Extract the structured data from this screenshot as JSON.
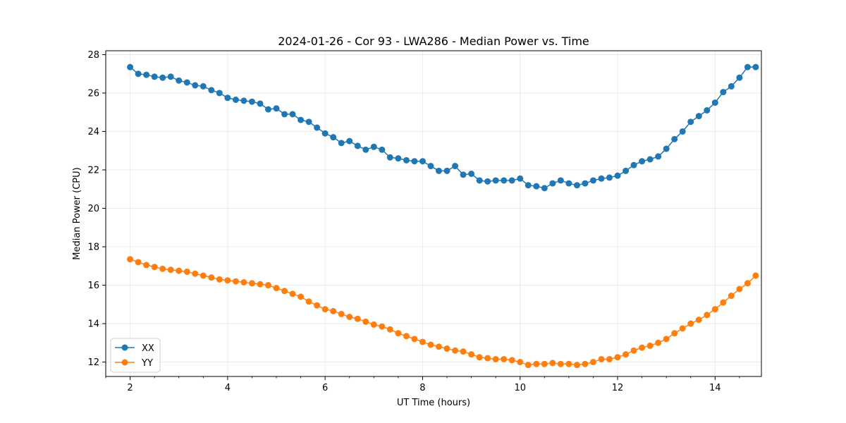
{
  "chart_data": {
    "type": "line",
    "title": "2024-01-26 - Cor 93 - LWA286 - Median Power vs. Time",
    "xlabel": "UT Time (hours)",
    "ylabel": "Median Power (CPU)",
    "xlim": [
      1.5,
      14.95
    ],
    "ylim": [
      11.25,
      28.2
    ],
    "xticks": [
      2,
      4,
      6,
      8,
      10,
      12,
      14
    ],
    "yticks": [
      12,
      14,
      16,
      18,
      20,
      22,
      24,
      26,
      28
    ],
    "grid": true,
    "legend_position": "lower-left",
    "x": [
      2.0,
      2.167,
      2.333,
      2.5,
      2.667,
      2.833,
      3.0,
      3.167,
      3.333,
      3.5,
      3.667,
      3.833,
      4.0,
      4.167,
      4.333,
      4.5,
      4.667,
      4.833,
      5.0,
      5.167,
      5.333,
      5.5,
      5.667,
      5.833,
      6.0,
      6.167,
      6.333,
      6.5,
      6.667,
      6.833,
      7.0,
      7.167,
      7.333,
      7.5,
      7.667,
      7.833,
      8.0,
      8.167,
      8.333,
      8.5,
      8.667,
      8.833,
      9.0,
      9.167,
      9.333,
      9.5,
      9.667,
      9.833,
      10.0,
      10.167,
      10.333,
      10.5,
      10.667,
      10.833,
      11.0,
      11.167,
      11.333,
      11.5,
      11.667,
      11.833,
      12.0,
      12.167,
      12.333,
      12.5,
      12.667,
      12.833,
      13.0,
      13.167,
      13.333,
      13.5,
      13.667,
      13.833,
      14.0,
      14.167,
      14.333,
      14.5,
      14.667,
      14.833
    ],
    "series": [
      {
        "name": "XX",
        "color": "#1f77b4",
        "values": [
          27.35,
          27.0,
          26.95,
          26.85,
          26.8,
          26.85,
          26.65,
          26.55,
          26.4,
          26.35,
          26.15,
          26.0,
          25.75,
          25.65,
          25.6,
          25.55,
          25.45,
          25.15,
          25.2,
          24.9,
          24.9,
          24.6,
          24.5,
          24.2,
          23.9,
          23.7,
          23.4,
          23.5,
          23.25,
          23.05,
          23.2,
          23.05,
          22.65,
          22.6,
          22.5,
          22.45,
          22.45,
          22.2,
          21.95,
          21.95,
          22.2,
          21.75,
          21.8,
          21.45,
          21.4,
          21.45,
          21.45,
          21.45,
          21.55,
          21.2,
          21.15,
          21.05,
          21.3,
          21.45,
          21.3,
          21.2,
          21.3,
          21.45,
          21.55,
          21.6,
          21.7,
          21.95,
          22.25,
          22.45,
          22.55,
          22.7,
          23.1,
          23.6,
          24.0,
          24.5,
          24.8,
          25.1,
          25.5,
          26.05,
          26.35,
          26.8,
          27.35,
          27.35
        ]
      },
      {
        "name": "YY",
        "color": "#ff7f0e",
        "values": [
          17.35,
          17.2,
          17.05,
          16.95,
          16.85,
          16.8,
          16.75,
          16.7,
          16.6,
          16.5,
          16.4,
          16.3,
          16.25,
          16.2,
          16.15,
          16.1,
          16.05,
          16.0,
          15.85,
          15.7,
          15.55,
          15.4,
          15.15,
          14.95,
          14.75,
          14.65,
          14.5,
          14.35,
          14.25,
          14.1,
          13.95,
          13.85,
          13.7,
          13.5,
          13.35,
          13.2,
          13.05,
          12.9,
          12.8,
          12.7,
          12.6,
          12.55,
          12.4,
          12.25,
          12.2,
          12.15,
          12.15,
          12.1,
          12.0,
          11.85,
          11.9,
          11.9,
          11.95,
          11.9,
          11.9,
          11.85,
          11.9,
          12.0,
          12.15,
          12.15,
          12.25,
          12.4,
          12.6,
          12.75,
          12.85,
          13.0,
          13.2,
          13.5,
          13.75,
          14.0,
          14.2,
          14.45,
          14.75,
          15.1,
          15.45,
          15.8,
          16.1,
          16.5
        ]
      }
    ]
  }
}
